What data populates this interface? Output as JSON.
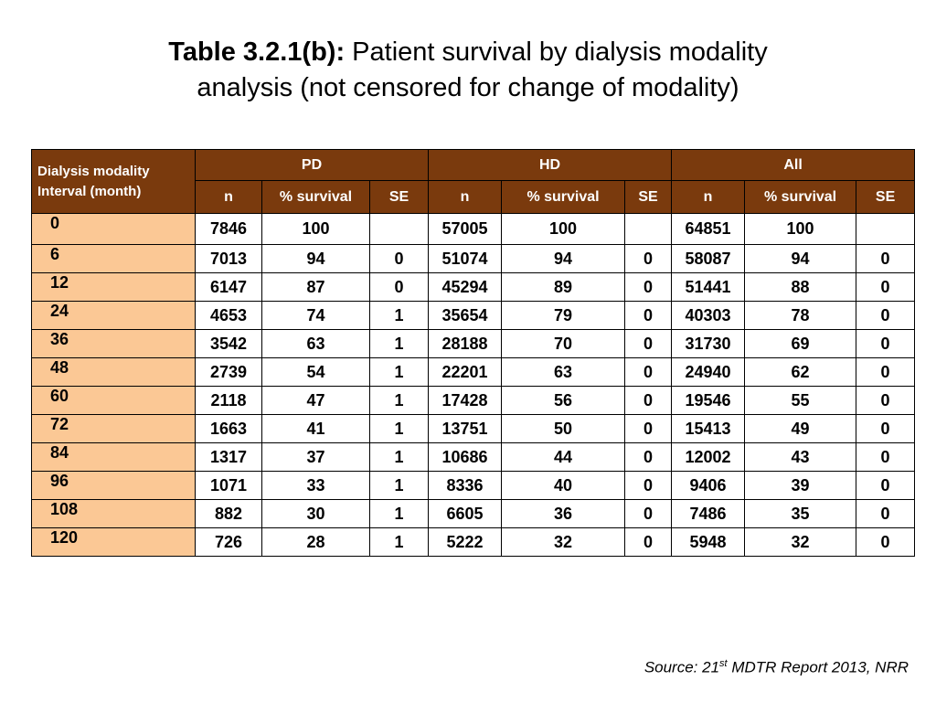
{
  "title": {
    "bold": "Table 3.2.1(b):",
    "rest_line1": " Patient survival by dialysis modality",
    "line2": "analysis (not censored for change of modality)"
  },
  "table": {
    "corner_line1": "Dialysis modality",
    "corner_line2": "Interval (month)",
    "groups": [
      "PD",
      "HD",
      "All"
    ],
    "subheaders": [
      "n",
      "% survival",
      "SE",
      "n",
      "% survival",
      "SE",
      "n",
      "% survival",
      "SE"
    ],
    "rows": [
      {
        "interval": "0",
        "cells": [
          "7846",
          "100",
          "",
          "57005",
          "100",
          "",
          "64851",
          "100",
          ""
        ]
      },
      {
        "interval": "6",
        "cells": [
          "7013",
          "94",
          "0",
          "51074",
          "94",
          "0",
          "58087",
          "94",
          "0"
        ]
      },
      {
        "interval": "12",
        "cells": [
          "6147",
          "87",
          "0",
          "45294",
          "89",
          "0",
          "51441",
          "88",
          "0"
        ]
      },
      {
        "interval": "24",
        "cells": [
          "4653",
          "74",
          "1",
          "35654",
          "79",
          "0",
          "40303",
          "78",
          "0"
        ]
      },
      {
        "interval": "36",
        "cells": [
          "3542",
          "63",
          "1",
          "28188",
          "70",
          "0",
          "31730",
          "69",
          "0"
        ]
      },
      {
        "interval": "48",
        "cells": [
          "2739",
          "54",
          "1",
          "22201",
          "63",
          "0",
          "24940",
          "62",
          "0"
        ]
      },
      {
        "interval": "60",
        "cells": [
          "2118",
          "47",
          "1",
          "17428",
          "56",
          "0",
          "19546",
          "55",
          "0"
        ]
      },
      {
        "interval": "72",
        "cells": [
          "1663",
          "41",
          "1",
          "13751",
          "50",
          "0",
          "15413",
          "49",
          "0"
        ]
      },
      {
        "interval": "84",
        "cells": [
          "1317",
          "37",
          "1",
          "10686",
          "44",
          "0",
          "12002",
          "43",
          "0"
        ]
      },
      {
        "interval": "96",
        "cells": [
          "1071",
          "33",
          "1",
          "8336",
          "40",
          "0",
          "9406",
          "39",
          "0"
        ]
      },
      {
        "interval": "108",
        "cells": [
          "882",
          "30",
          "1",
          "6605",
          "36",
          "0",
          "7486",
          "35",
          "0"
        ]
      },
      {
        "interval": "120",
        "cells": [
          "726",
          "28",
          "1",
          "5222",
          "32",
          "0",
          "5948",
          "32",
          "0"
        ]
      }
    ]
  },
  "source": {
    "prefix": "Source: 21",
    "superscript": "st",
    "suffix": " MDTR Report 2013, NRR"
  },
  "colors": {
    "header_bg": "#7a3a0d",
    "row_label_bg": "#fbc895"
  }
}
